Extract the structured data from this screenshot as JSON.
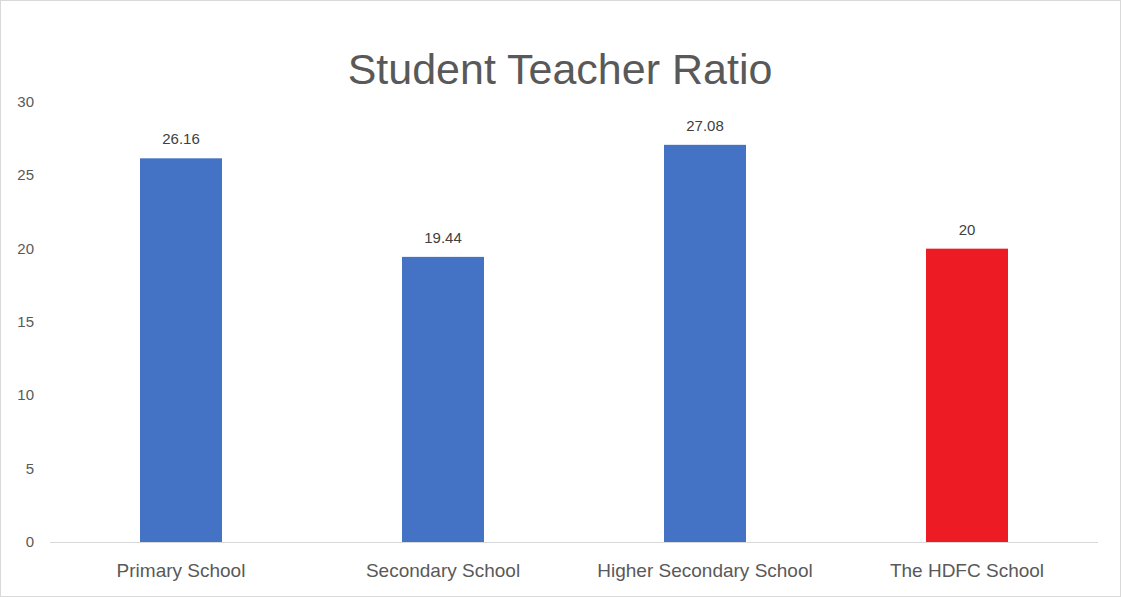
{
  "chart_data": {
    "type": "bar",
    "title": "Student Teacher Ratio",
    "categories": [
      "Primary School",
      "Secondary School",
      "Higher Secondary School",
      "The HDFC School"
    ],
    "values": [
      26.16,
      19.44,
      27.08,
      20
    ],
    "colors": [
      "#4472c4",
      "#4472c4",
      "#4472c4",
      "#ed1c24"
    ],
    "ylim": [
      0,
      30
    ],
    "yticks": [
      0,
      5,
      10,
      15,
      20,
      25,
      30
    ],
    "grid": false,
    "data_labels": true
  }
}
